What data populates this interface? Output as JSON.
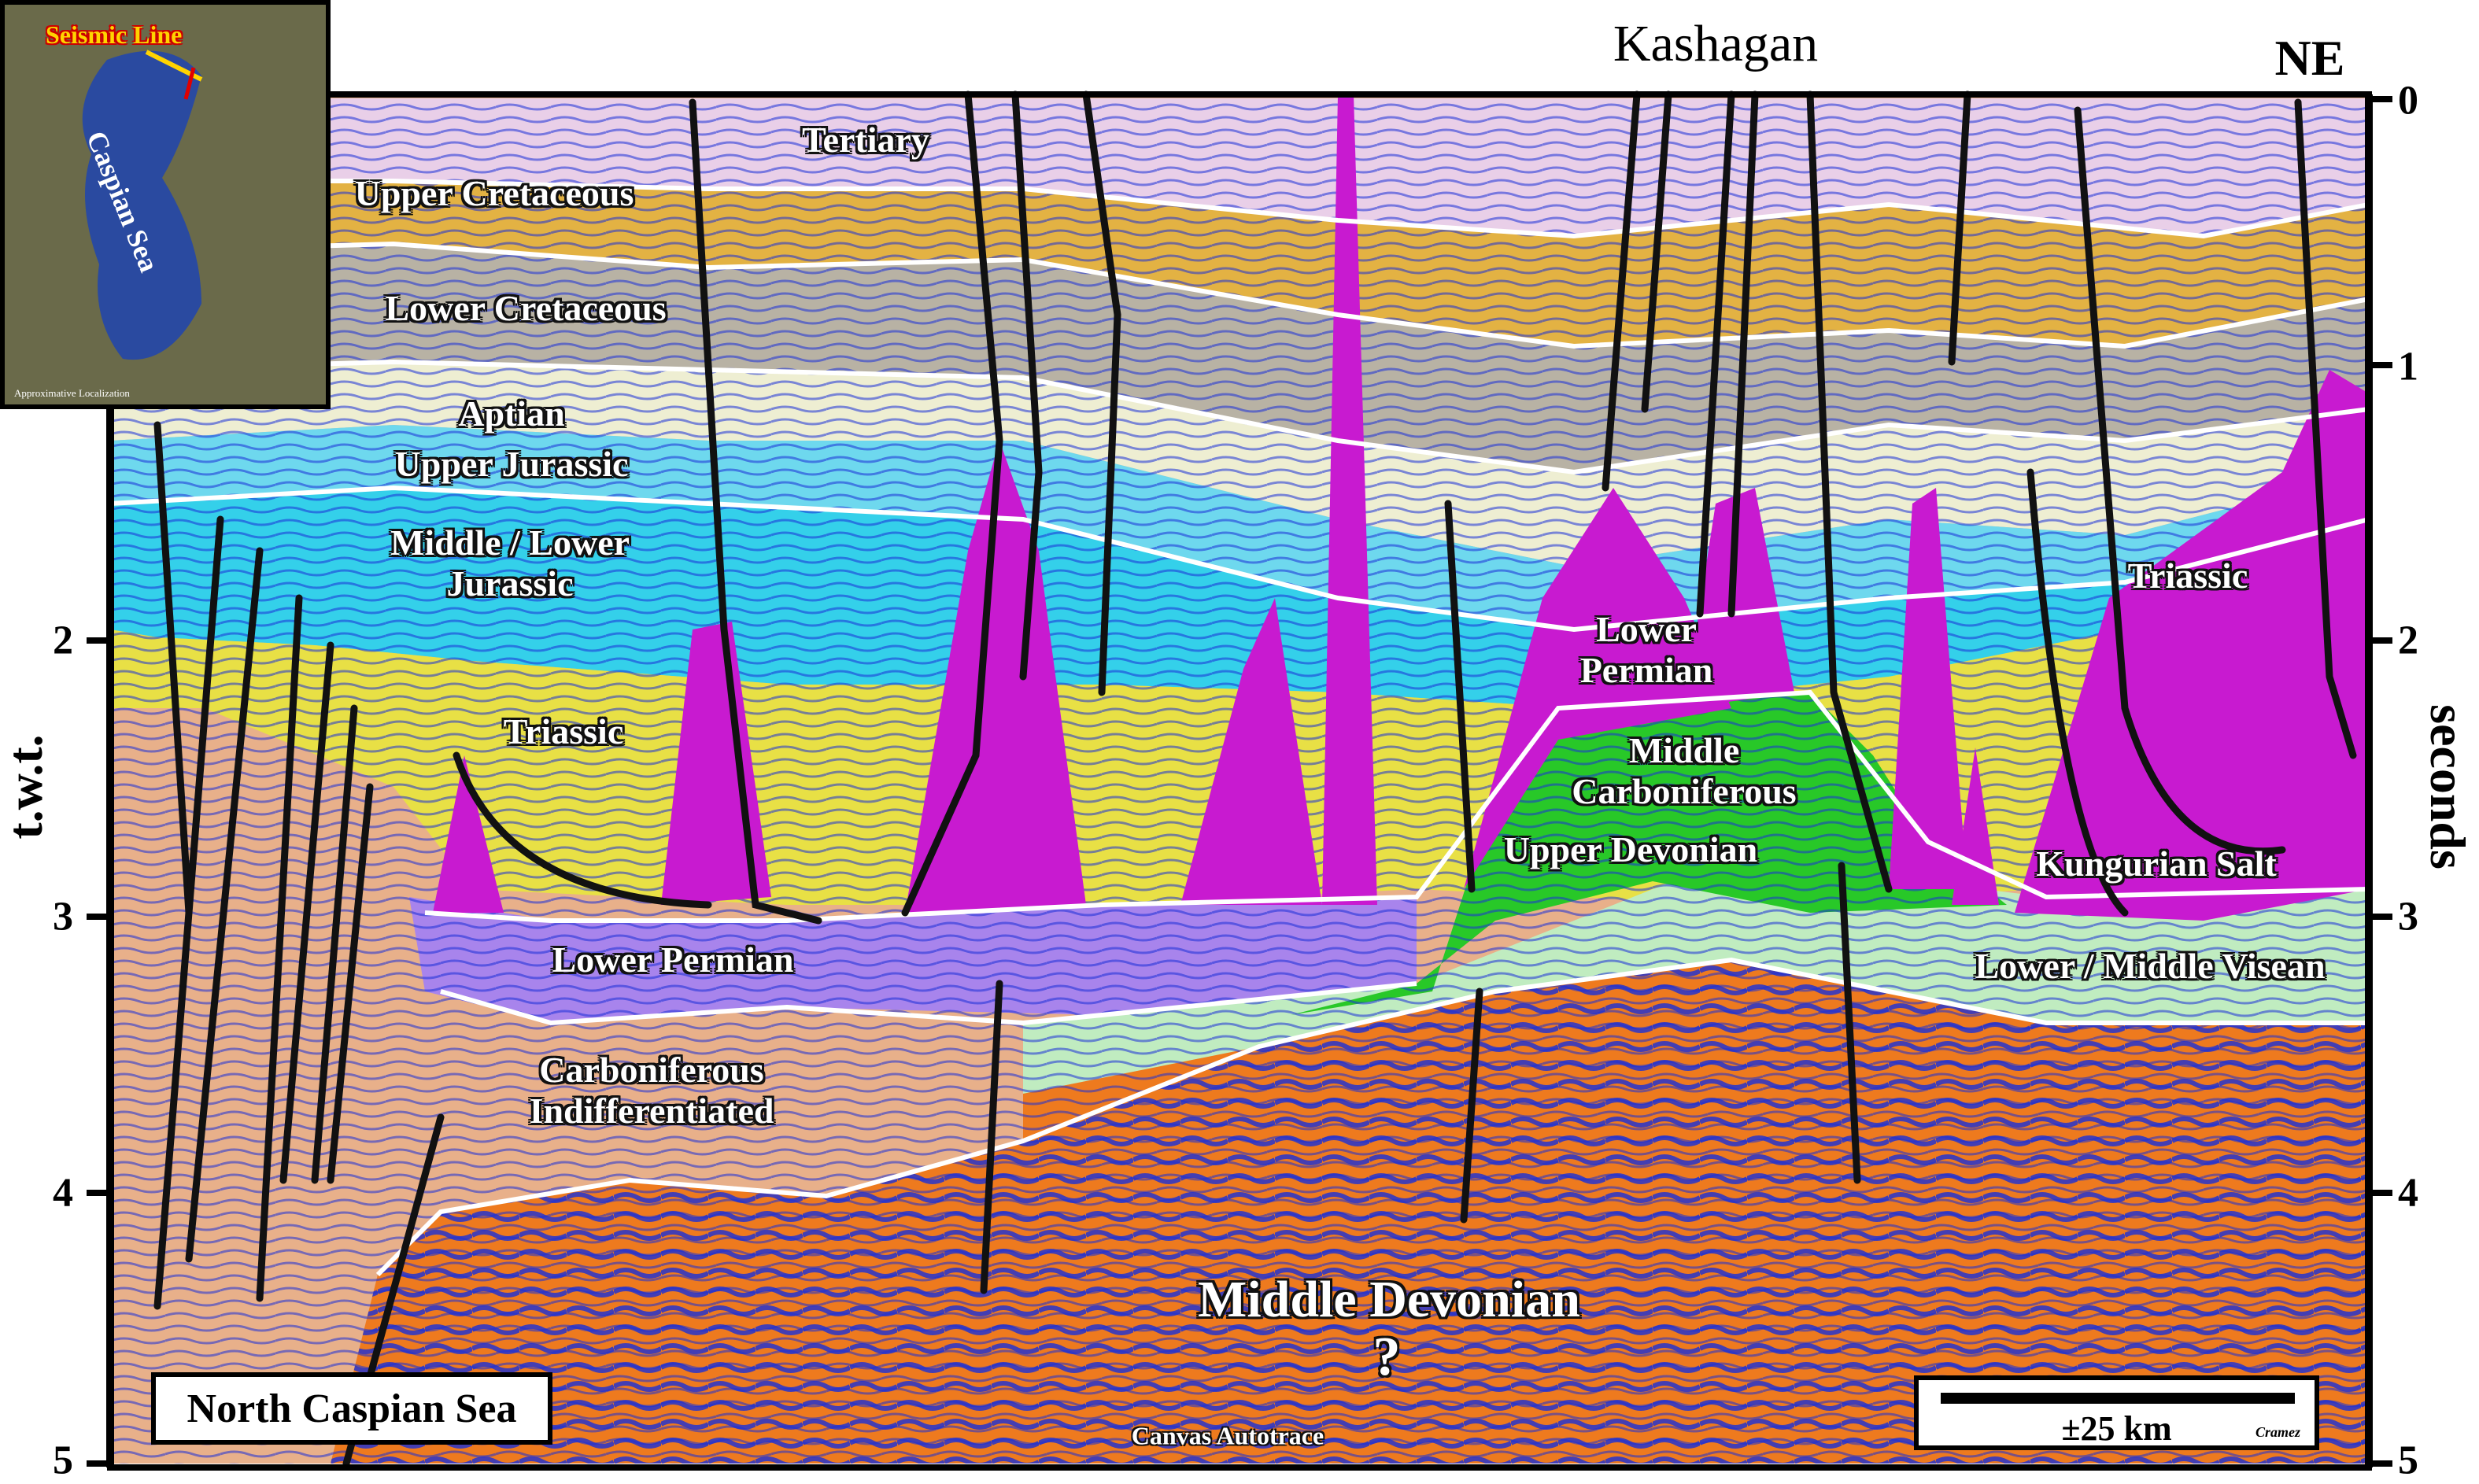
{
  "title": "Kashagan",
  "orientation_label": "NE",
  "left_axis": {
    "title": "t.w.t.",
    "ticks": [
      "2",
      "3",
      "4",
      "5"
    ]
  },
  "right_axis": {
    "title": "seconds",
    "ticks": [
      "0",
      "1",
      "2",
      "3",
      "4",
      "5"
    ]
  },
  "units": [
    {
      "id": "tertiary",
      "label": "Tertiary",
      "color": "#e9cfe8"
    },
    {
      "id": "upper-cretaceous",
      "label": "Upper Cretaceous",
      "color": "#e3b243"
    },
    {
      "id": "lower-cretaceous",
      "label": "Lower Cretaceous",
      "color": "#b8b2a4"
    },
    {
      "id": "aptian",
      "label": "Aptian",
      "color": "#eeeed2"
    },
    {
      "id": "upper-jurassic",
      "label": "Upper Jurassic",
      "color": "#6ed8ee"
    },
    {
      "id": "middle-lower-jurassic",
      "label": "Middle / Lower\nJurassic",
      "color": "#34d0ea"
    },
    {
      "id": "triassic",
      "label": "Triassic",
      "color": "#e8e045"
    },
    {
      "id": "lower-permian",
      "label": "Lower Permian",
      "color": "#a884ec"
    },
    {
      "id": "carboniferous-indiff",
      "label": "Carboniferous\nIndifferentiated",
      "color": "#e8b08a"
    },
    {
      "id": "middle-devonian",
      "label": "Middle Devonian",
      "color": "#ee7a1e"
    },
    {
      "id": "kungurian-salt",
      "label": "Kungurian Salt",
      "color": "#c81ad0"
    },
    {
      "id": "lower-permian-2",
      "label": "Lower\nPermian",
      "color": "#c81ad0"
    },
    {
      "id": "middle-carboniferous",
      "label": "Middle\nCarboniferous",
      "color": "#28c828"
    },
    {
      "id": "upper-devonian",
      "label": "Upper Devonian",
      "color": "#c0ecc0"
    },
    {
      "id": "lower-middle-visean",
      "label": "Lower / Middle Visean",
      "color": "#c0ecc0"
    },
    {
      "id": "triassic-2",
      "label": "Triassic",
      "color": "#e8e045"
    }
  ],
  "question_mark": "?",
  "location_box": "North Caspian Sea",
  "scale": {
    "label": "±25 km",
    "signature": "Cramez"
  },
  "canvas_note": "Canvas Autotrace",
  "inset": {
    "title": "Seismic Line",
    "sea_label": "Caspian Sea",
    "footer": "Approximative Localization"
  },
  "colors": {
    "salt": "#c81ad0",
    "fault": "#111111",
    "reflector": "#1a2fd8",
    "horizon": "#ffffff"
  }
}
